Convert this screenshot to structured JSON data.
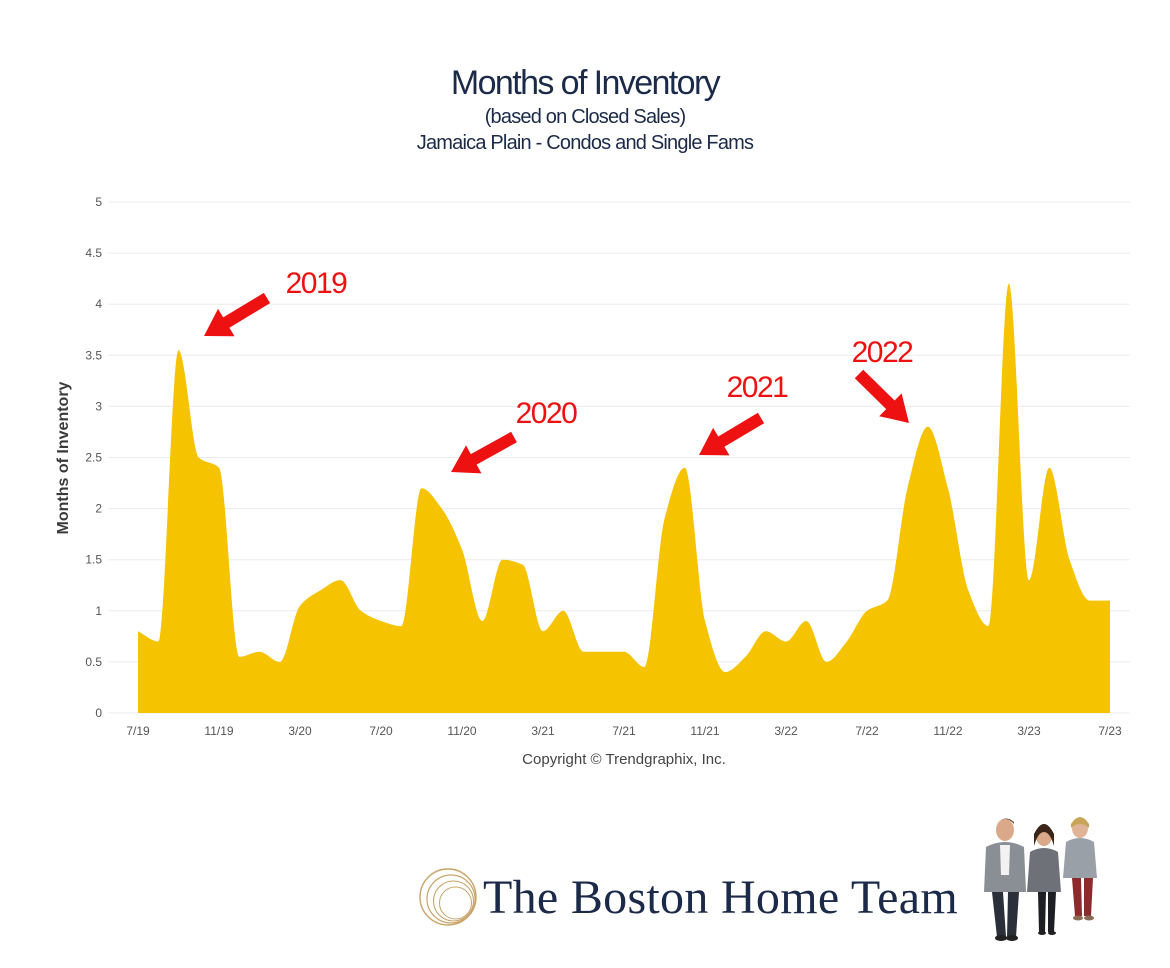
{
  "header": {
    "title": "Months of Inventory",
    "subtitle_1": "(based on Closed Sales)",
    "subtitle_2": "Jamaica Plain - Condos and Single Fams"
  },
  "footer": {
    "copyright": "Copyright © Trendgraphix, Inc.",
    "brand_name": "The Boston Home Team"
  },
  "colors": {
    "area_fill": "#f5c300",
    "arrow_red": "#ee1111",
    "title_navy": "#1b2a48",
    "gridline": "#ececec",
    "brand_gold": "#c8a46a"
  },
  "chart_data": {
    "type": "area",
    "ylabel": "Months of Inventory",
    "ylim": [
      0,
      5
    ],
    "y_ticks": [
      "0",
      "0.5",
      "1",
      "1.5",
      "2",
      "2.5",
      "3",
      "3.5",
      "4",
      "4.5",
      "5"
    ],
    "grid": true,
    "x_tick_labels": [
      "7/19",
      "11/19",
      "3/20",
      "7/20",
      "11/20",
      "3/21",
      "7/21",
      "11/21",
      "3/22",
      "7/22",
      "11/22",
      "3/23",
      "7/23"
    ],
    "x": [
      "7/19",
      "8/19",
      "9/19",
      "10/19",
      "11/19",
      "12/19",
      "1/20",
      "2/20",
      "3/20",
      "4/20",
      "5/20",
      "6/20",
      "7/20",
      "8/20",
      "9/20",
      "10/20",
      "11/20",
      "12/20",
      "1/21",
      "2/21",
      "3/21",
      "4/21",
      "5/21",
      "6/21",
      "7/21",
      "8/21",
      "9/21",
      "10/21",
      "11/21",
      "12/21",
      "1/22",
      "2/22",
      "3/22",
      "4/22",
      "5/22",
      "6/22",
      "7/22",
      "8/22",
      "9/22",
      "10/22",
      "11/22",
      "12/22",
      "1/23",
      "2/23",
      "3/23",
      "4/23",
      "5/23",
      "6/23",
      "7/23"
    ],
    "series": [
      {
        "values": [
          0.8,
          0.7,
          3.55,
          2.5,
          2.4,
          0.55,
          0.6,
          0.5,
          1.05,
          1.2,
          1.3,
          1.0,
          0.9,
          0.85,
          2.2,
          2.0,
          1.6,
          0.9,
          1.5,
          1.45,
          0.8,
          1.0,
          0.6,
          0.6,
          0.6,
          0.45,
          1.9,
          2.4,
          0.9,
          0.4,
          0.55,
          0.8,
          0.7,
          0.9,
          0.5,
          0.7,
          1.0,
          1.1,
          2.2,
          2.8,
          2.2,
          1.2,
          0.85,
          4.2,
          1.3,
          2.4,
          1.5,
          1.1,
          1.1
        ]
      }
    ],
    "annotations": [
      {
        "text": "2019",
        "points_to": "9/19"
      },
      {
        "text": "2020",
        "points_to": "10/20"
      },
      {
        "text": "2021",
        "points_to": "10/21"
      },
      {
        "text": "2022",
        "points_to": "10/22"
      }
    ]
  }
}
